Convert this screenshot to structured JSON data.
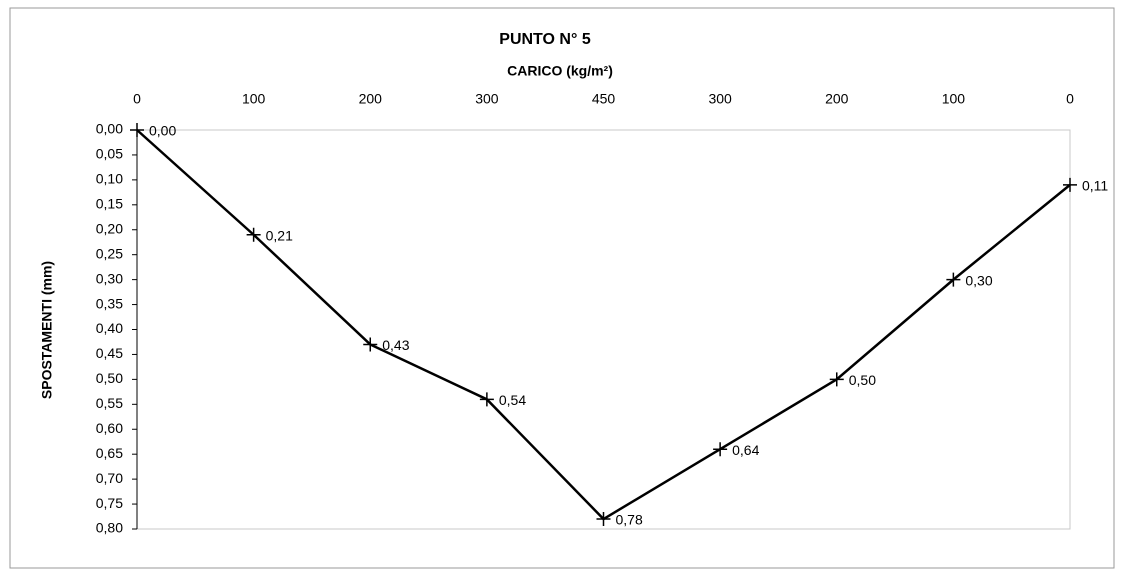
{
  "chart_data": {
    "type": "line",
    "title": "PUNTO N° 5",
    "x_label": "CARICO (kg/m²)",
    "y_label": "SPOSTAMENTI (mm)",
    "categories": [
      "0",
      "100",
      "200",
      "300",
      "450",
      "300",
      "200",
      "100",
      "0"
    ],
    "values": [
      0,
      0.21,
      0.43,
      0.54,
      0.78,
      0.64,
      0.5,
      0.3,
      0.11
    ],
    "value_labels": [
      "0,00",
      "0,21",
      "0,43",
      "0,54",
      "0,78",
      "0,64",
      "0,50",
      "0,30",
      "0,11"
    ],
    "color": "#000000",
    "y_inverted": true,
    "x_axis_position": "top",
    "grid": false,
    "ylim": [
      0,
      0.8
    ],
    "yticks": [
      {
        "value": 0,
        "label": "0,00"
      },
      {
        "value": 0.05,
        "label": "0,05"
      },
      {
        "value": 0.1,
        "label": "0,10"
      },
      {
        "value": 0.15,
        "label": "0,15"
      },
      {
        "value": 0.2,
        "label": "0,20"
      },
      {
        "value": 0.25,
        "label": "0,25"
      },
      {
        "value": 0.3,
        "label": "0,30"
      },
      {
        "value": 0.35,
        "label": "0,35"
      },
      {
        "value": 0.4,
        "label": "0,40"
      },
      {
        "value": 0.45,
        "label": "0,45"
      },
      {
        "value": 0.5,
        "label": "0,50"
      },
      {
        "value": 0.55,
        "label": "0,55"
      },
      {
        "value": 0.6,
        "label": "0,60"
      },
      {
        "value": 0.65,
        "label": "0,65"
      },
      {
        "value": 0.7,
        "label": "0,70"
      },
      {
        "value": 0.75,
        "label": "0,75"
      },
      {
        "value": 0.8,
        "label": "0,80"
      }
    ]
  }
}
